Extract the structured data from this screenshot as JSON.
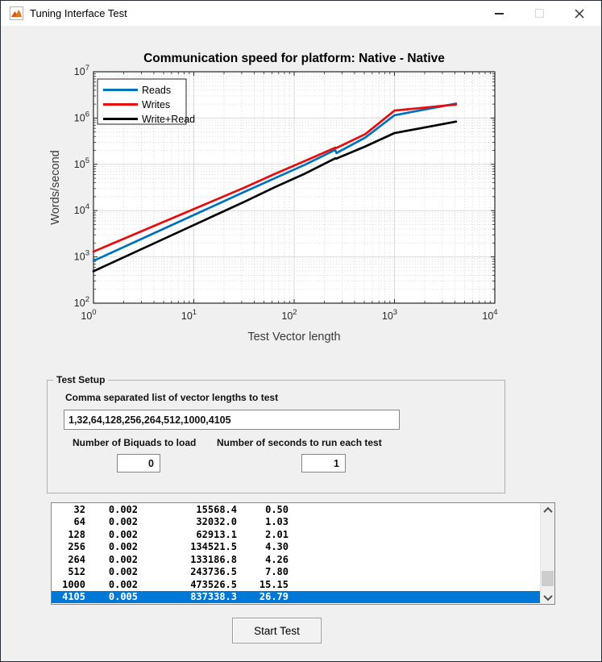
{
  "window": {
    "title": "Tuning Interface Test",
    "controls": [
      {
        "name": "minimize",
        "icon": "minimize-icon"
      },
      {
        "name": "maximize",
        "icon": "maximize-icon",
        "enabled": false
      },
      {
        "name": "close",
        "icon": "close-icon"
      }
    ],
    "app_icon": "matlab-icon"
  },
  "chart_data": {
    "type": "line",
    "title": "Communication speed for platform:  Native - Native",
    "xlabel": "Test Vector length",
    "ylabel": "Words/second",
    "x_scale": "log",
    "y_scale": "log",
    "xlim": [
      1,
      10000
    ],
    "ylim": [
      100,
      10000000
    ],
    "grid": true,
    "legend_position": "top-left",
    "x": [
      1,
      32,
      64,
      128,
      256,
      264,
      512,
      1000,
      4105
    ],
    "series": [
      {
        "name": "Reads",
        "color": "#0072BD",
        "values": [
          820,
          25500,
          50000,
          98000,
          205000,
          175000,
          380000,
          1150000,
          2050000
        ]
      },
      {
        "name": "Writes",
        "color": "#E80C0C",
        "values": [
          1300,
          31500,
          62000,
          118000,
          228000,
          226000,
          450000,
          1450000,
          1960000
        ]
      },
      {
        "name": "Write+Read",
        "color": "#000000",
        "values": [
          490,
          15568.4,
          32032.0,
          62913.1,
          134521.5,
          133186.8,
          243736.5,
          473526.5,
          837338.3
        ]
      }
    ]
  },
  "test_setup": {
    "group_label": "Test Setup",
    "vector_lengths_label": "Comma separated list of vector lengths to test",
    "vector_lengths_value": "1,32,64,128,256,264,512,1000,4105",
    "biquads_label": "Number of Biquads to load",
    "biquads_value": "0",
    "seconds_label": "Number of seconds to run each test",
    "seconds_value": "1"
  },
  "results_list": {
    "rows": [
      [
        "32",
        "0.002",
        "15568.4",
        "0.50"
      ],
      [
        "64",
        "0.002",
        "32032.0",
        "1.03"
      ],
      [
        "128",
        "0.002",
        "62913.1",
        "2.01"
      ],
      [
        "256",
        "0.002",
        "134521.5",
        "4.30"
      ],
      [
        "264",
        "0.002",
        "133186.8",
        "4.26"
      ],
      [
        "512",
        "0.002",
        "243736.5",
        "7.80"
      ],
      [
        "1000",
        "0.002",
        "473526.5",
        "15.15"
      ],
      [
        "4105",
        "0.005",
        "837338.3",
        "26.79"
      ]
    ],
    "selected_index": 7,
    "selection_color": "#0078d7"
  },
  "start_button_label": "Start Test"
}
